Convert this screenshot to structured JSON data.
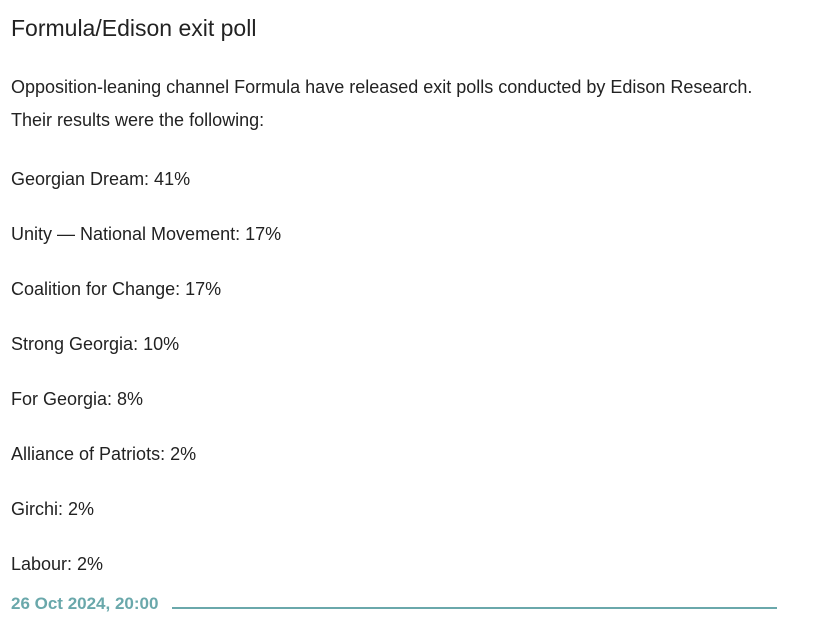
{
  "post": {
    "title": "Formula/Edison exit poll",
    "intro": "Opposition-leaning channel Formula have released exit polls conducted by Edison Research. Their results were the following:",
    "results": [
      "Georgian Dream: 41%",
      "Unity — National Movement: 17%",
      "Coalition for Change: 17%",
      "Strong Georgia: 10%",
      "For Georgia: 8%",
      "Alliance of Patriots: 2%",
      "Girchi: 2%",
      "Labour: 2%"
    ]
  },
  "footer": {
    "timestamp": "26 Oct 2024, 20:00"
  },
  "colors": {
    "text": "#222222",
    "accent": "#6aa8ab"
  }
}
